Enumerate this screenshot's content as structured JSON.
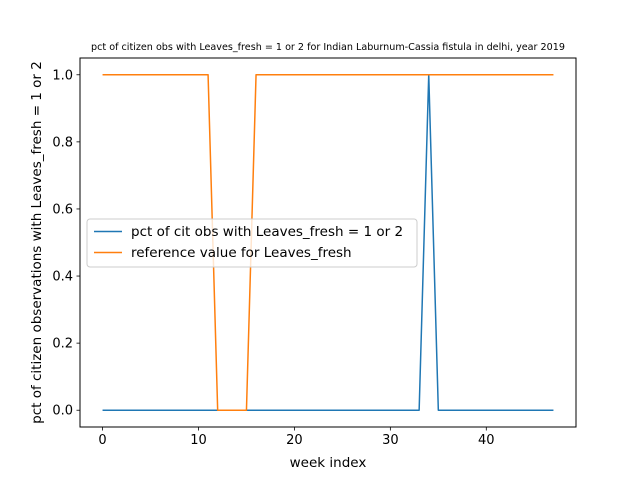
{
  "chart_data": {
    "type": "line",
    "title": "pct of citizen obs with Leaves_fresh = 1 or 2 for Indian Laburnum-Cassia fistula in delhi, year 2019",
    "xlabel": "week index",
    "ylabel": "pct of citizen observations with Leaves_fresh = 1 or 2",
    "xlim": [
      -2.35,
      49.35
    ],
    "ylim": [
      -0.05,
      1.05
    ],
    "xticks": [
      0,
      10,
      20,
      30,
      40
    ],
    "yticks": [
      0.0,
      0.2,
      0.4,
      0.6,
      0.8,
      1.0
    ],
    "xtick_labels": [
      "0",
      "10",
      "20",
      "30",
      "40"
    ],
    "ytick_labels": [
      "0.0",
      "0.2",
      "0.4",
      "0.6",
      "0.8",
      "1.0"
    ],
    "grid": false,
    "legend_position": "center-left",
    "series": [
      {
        "name": "pct of cit obs with Leaves_fresh = 1 or 2",
        "color": "#1f77b4",
        "x": [
          0,
          1,
          2,
          3,
          4,
          5,
          6,
          7,
          8,
          9,
          10,
          11,
          12,
          13,
          14,
          15,
          16,
          17,
          18,
          19,
          20,
          21,
          22,
          23,
          24,
          25,
          26,
          27,
          28,
          29,
          30,
          31,
          32,
          33,
          34,
          35,
          36,
          37,
          38,
          39,
          40,
          41,
          42,
          43,
          44,
          45,
          46,
          47
        ],
        "y": [
          0,
          0,
          0,
          0,
          0,
          0,
          0,
          0,
          0,
          0,
          0,
          0,
          0,
          0,
          0,
          0,
          0,
          0,
          0,
          0,
          0,
          0,
          0,
          0,
          0,
          0,
          0,
          0,
          0,
          0,
          0,
          0,
          0,
          0,
          1,
          0,
          0,
          0,
          0,
          0,
          0,
          0,
          0,
          0,
          0,
          0,
          0,
          0
        ]
      },
      {
        "name": "reference value for Leaves_fresh",
        "color": "#ff7f0e",
        "x": [
          0,
          1,
          2,
          3,
          4,
          5,
          6,
          7,
          8,
          9,
          10,
          11,
          12,
          13,
          14,
          15,
          16,
          17,
          18,
          19,
          20,
          21,
          22,
          23,
          24,
          25,
          26,
          27,
          28,
          29,
          30,
          31,
          32,
          33,
          34,
          35,
          36,
          37,
          38,
          39,
          40,
          41,
          42,
          43,
          44,
          45,
          46,
          47
        ],
        "y": [
          1,
          1,
          1,
          1,
          1,
          1,
          1,
          1,
          1,
          1,
          1,
          1,
          0,
          0,
          0,
          0,
          1,
          1,
          1,
          1,
          1,
          1,
          1,
          1,
          1,
          1,
          1,
          1,
          1,
          1,
          1,
          1,
          1,
          1,
          1,
          1,
          1,
          1,
          1,
          1,
          1,
          1,
          1,
          1,
          1,
          1,
          1,
          1
        ]
      }
    ]
  }
}
